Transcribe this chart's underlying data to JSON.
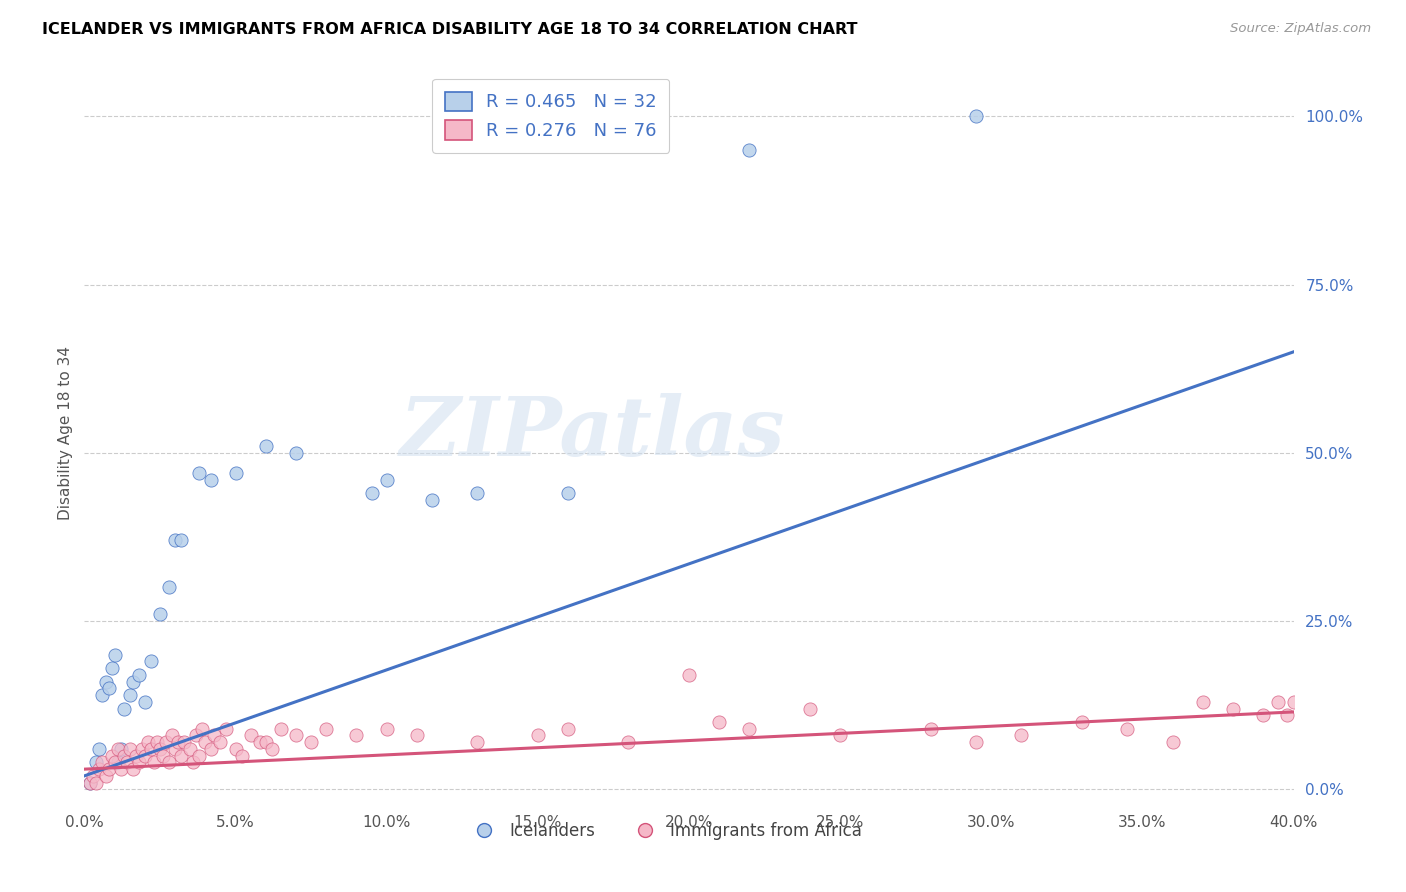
{
  "title": "ICELANDER VS IMMIGRANTS FROM AFRICA DISABILITY AGE 18 TO 34 CORRELATION CHART",
  "source": "Source: ZipAtlas.com",
  "ylabel": "Disability Age 18 to 34",
  "xlim": [
    0.0,
    0.4
  ],
  "ylim": [
    -0.02,
    1.08
  ],
  "blue_R": 0.465,
  "blue_N": 32,
  "pink_R": 0.276,
  "pink_N": 76,
  "blue_color": "#b8d0ea",
  "pink_color": "#f5b8c8",
  "blue_line_color": "#4472c4",
  "pink_line_color": "#d4547a",
  "watermark_text": "ZIPatlas",
  "blue_scatter_x": [
    0.002,
    0.004,
    0.005,
    0.006,
    0.007,
    0.008,
    0.009,
    0.01,
    0.011,
    0.012,
    0.013,
    0.015,
    0.016,
    0.018,
    0.02,
    0.022,
    0.025,
    0.028,
    0.03,
    0.032,
    0.038,
    0.042,
    0.05,
    0.06,
    0.07,
    0.095,
    0.1,
    0.115,
    0.13,
    0.16,
    0.22,
    0.295
  ],
  "blue_scatter_y": [
    0.01,
    0.04,
    0.06,
    0.14,
    0.16,
    0.15,
    0.18,
    0.2,
    0.04,
    0.06,
    0.12,
    0.14,
    0.16,
    0.17,
    0.13,
    0.19,
    0.26,
    0.3,
    0.37,
    0.37,
    0.47,
    0.46,
    0.47,
    0.51,
    0.5,
    0.44,
    0.46,
    0.43,
    0.44,
    0.44,
    0.95,
    1.0
  ],
  "pink_scatter_x": [
    0.002,
    0.003,
    0.004,
    0.005,
    0.006,
    0.007,
    0.008,
    0.009,
    0.01,
    0.011,
    0.012,
    0.013,
    0.014,
    0.015,
    0.016,
    0.017,
    0.018,
    0.019,
    0.02,
    0.021,
    0.022,
    0.023,
    0.024,
    0.025,
    0.026,
    0.027,
    0.028,
    0.029,
    0.03,
    0.031,
    0.032,
    0.033,
    0.035,
    0.036,
    0.037,
    0.038,
    0.039,
    0.04,
    0.042,
    0.043,
    0.045,
    0.047,
    0.05,
    0.052,
    0.055,
    0.058,
    0.06,
    0.062,
    0.065,
    0.07,
    0.075,
    0.08,
    0.09,
    0.1,
    0.11,
    0.13,
    0.15,
    0.16,
    0.18,
    0.2,
    0.22,
    0.25,
    0.28,
    0.295,
    0.31,
    0.33,
    0.345,
    0.36,
    0.37,
    0.38,
    0.39,
    0.395,
    0.398,
    0.4,
    0.21,
    0.24
  ],
  "pink_scatter_y": [
    0.01,
    0.02,
    0.01,
    0.03,
    0.04,
    0.02,
    0.03,
    0.05,
    0.04,
    0.06,
    0.03,
    0.05,
    0.04,
    0.06,
    0.03,
    0.05,
    0.04,
    0.06,
    0.05,
    0.07,
    0.06,
    0.04,
    0.07,
    0.06,
    0.05,
    0.07,
    0.04,
    0.08,
    0.06,
    0.07,
    0.05,
    0.07,
    0.06,
    0.04,
    0.08,
    0.05,
    0.09,
    0.07,
    0.06,
    0.08,
    0.07,
    0.09,
    0.06,
    0.05,
    0.08,
    0.07,
    0.07,
    0.06,
    0.09,
    0.08,
    0.07,
    0.09,
    0.08,
    0.09,
    0.08,
    0.07,
    0.08,
    0.09,
    0.07,
    0.17,
    0.09,
    0.08,
    0.09,
    0.07,
    0.08,
    0.1,
    0.09,
    0.07,
    0.13,
    0.12,
    0.11,
    0.13,
    0.11,
    0.13,
    0.1,
    0.12
  ],
  "blue_line_x0": 0.0,
  "blue_line_y0": 0.02,
  "blue_line_x1": 0.4,
  "blue_line_y1": 0.65,
  "pink_line_x0": 0.0,
  "pink_line_y0": 0.03,
  "pink_line_x1": 0.4,
  "pink_line_y1": 0.115
}
